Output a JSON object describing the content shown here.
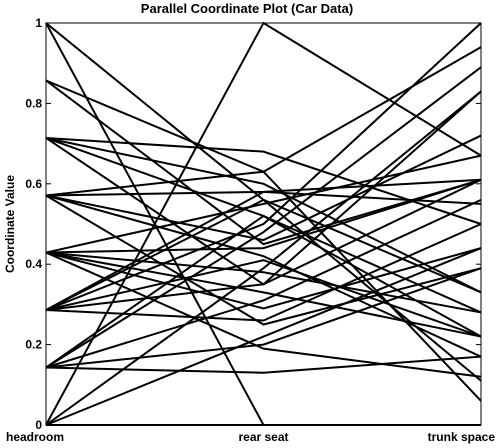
{
  "chart_data": {
    "type": "line",
    "title": "Parallel Coordinate Plot (Car Data)",
    "ylabel": "Coordinate Value",
    "xlabel": "",
    "categories": [
      "headroom",
      "rear seat",
      "trunk space"
    ],
    "ylim": [
      0,
      1
    ],
    "yticks": [
      "0",
      "0.2",
      "0.4",
      "0.6",
      "0.8",
      "1"
    ],
    "line_color": "#000000",
    "grid": false,
    "series": [
      {
        "values": [
          1.0,
          0.56,
          0.11
        ]
      },
      {
        "values": [
          0.857,
          0.63,
          0.06
        ]
      },
      {
        "values": [
          0.857,
          0.45,
          0.61
        ]
      },
      {
        "values": [
          0.714,
          0.68,
          0.5
        ]
      },
      {
        "values": [
          0.714,
          0.52,
          0.22
        ]
      },
      {
        "values": [
          0.714,
          0.35,
          0.83
        ]
      },
      {
        "values": [
          0.714,
          0.6,
          0.33
        ]
      },
      {
        "values": [
          0.571,
          0.46,
          0.72
        ]
      },
      {
        "values": [
          0.571,
          0.58,
          0.61
        ]
      },
      {
        "values": [
          0.571,
          0.25,
          0.39
        ]
      },
      {
        "values": [
          0.571,
          0.42,
          0.17
        ]
      },
      {
        "values": [
          0.571,
          0.63,
          0.94
        ]
      },
      {
        "values": [
          0.429,
          0.44,
          0.61
        ]
      },
      {
        "values": [
          0.429,
          0.29,
          0.44
        ]
      },
      {
        "values": [
          0.429,
          0.38,
          0.28
        ]
      },
      {
        "values": [
          0.429,
          0.55,
          0.67
        ]
      },
      {
        "values": [
          0.429,
          0.19,
          0.12
        ]
      },
      {
        "values": [
          0.286,
          0.5,
          1.0
        ]
      },
      {
        "values": [
          0.286,
          0.35,
          0.61
        ]
      },
      {
        "values": [
          0.286,
          0.26,
          0.5
        ]
      },
      {
        "values": [
          0.286,
          0.56,
          0.33
        ]
      },
      {
        "values": [
          0.286,
          0.41,
          0.22
        ]
      },
      {
        "values": [
          0.143,
          0.48,
          0.89
        ]
      },
      {
        "values": [
          0.143,
          0.31,
          0.56
        ]
      },
      {
        "values": [
          0.143,
          0.2,
          0.39
        ]
      },
      {
        "values": [
          0.143,
          0.52,
          0.28
        ]
      },
      {
        "values": [
          0.143,
          0.13,
          0.17
        ]
      },
      {
        "values": [
          0.0,
          1.0,
          0.67
        ]
      },
      {
        "values": [
          0.0,
          0.39,
          0.83
        ]
      },
      {
        "values": [
          0.0,
          0.22,
          0.44
        ]
      },
      {
        "values": [
          0.0,
          0.0,
          0.0
        ]
      },
      {
        "values": [
          1.0,
          0.0,
          0.0
        ]
      },
      {
        "values": [
          0.286,
          0.58,
          0.55
        ]
      },
      {
        "values": [
          0.429,
          0.33,
          0.22
        ]
      }
    ]
  }
}
